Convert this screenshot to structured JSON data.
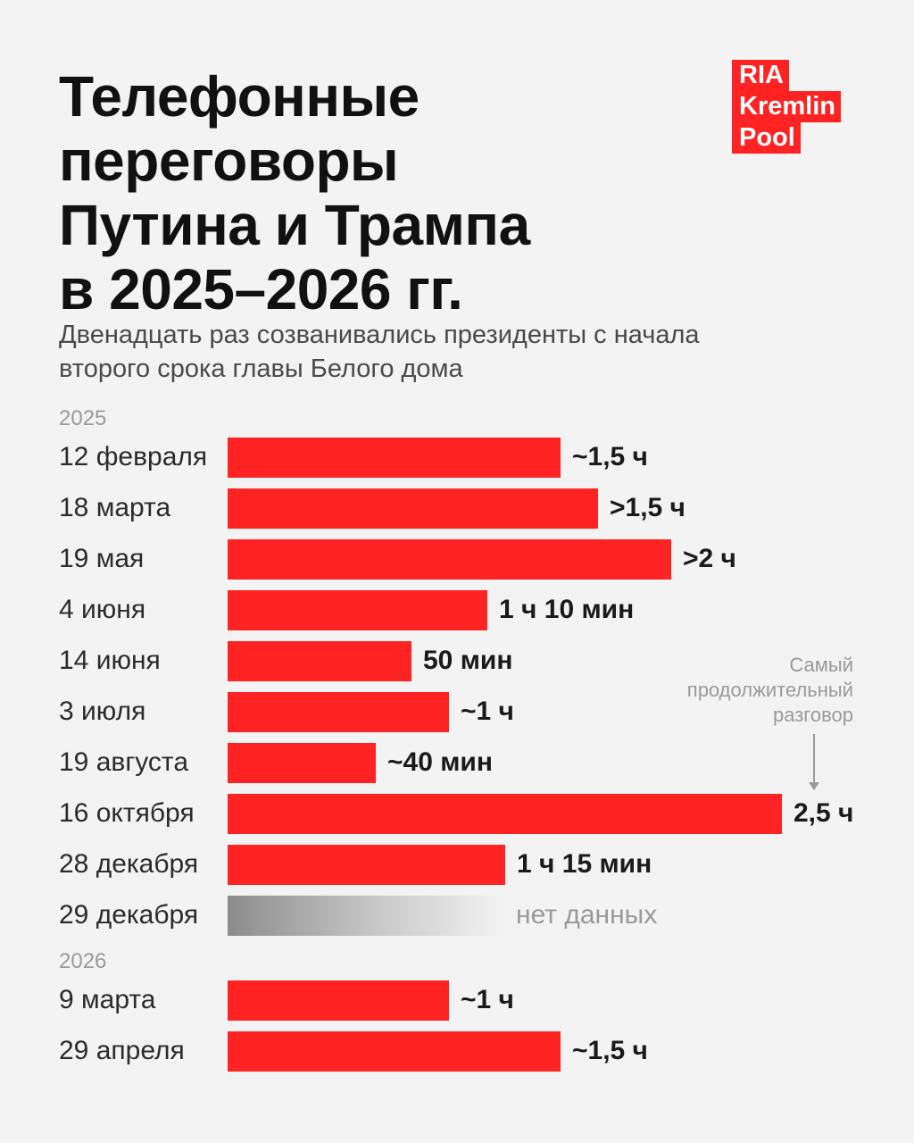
{
  "title_lines": [
    "Телефонные",
    "переговоры",
    "Путина и Трампа",
    "в 2025–2026 гг."
  ],
  "subtitle_lines": [
    "Двенадцать раз созванивались президенты с начала",
    "второго срока главы Белого дома"
  ],
  "logo_lines": [
    "RIA",
    "Kremlin",
    "Pool"
  ],
  "colors": {
    "bar": "#ff2323",
    "no_data": "#9a9a9a",
    "background": "#f3f3f3"
  },
  "annotation": {
    "lines": [
      "Самый",
      "продолжительный",
      "разговор"
    ],
    "target": "16 октября"
  },
  "chart_data": {
    "type": "bar",
    "orientation": "horizontal",
    "unit": "hours",
    "title": "Телефонные переговоры Путина и Трампа в 2025–2026 гг.",
    "xlim": [
      0,
      2.5
    ],
    "groups": [
      {
        "year": "2025",
        "rows": [
          {
            "date": "12 февраля",
            "value": 1.5,
            "label": "~1,5 ч"
          },
          {
            "date": "18 марта",
            "value": 1.67,
            "label": ">1,5 ч"
          },
          {
            "date": "19 мая",
            "value": 2.0,
            "label": ">2 ч"
          },
          {
            "date": "4 июня",
            "value": 1.17,
            "label": "1 ч 10 мин"
          },
          {
            "date": "14 июня",
            "value": 0.83,
            "label": "50 мин"
          },
          {
            "date": "3 июля",
            "value": 1.0,
            "label": "~1 ч"
          },
          {
            "date": "19 августа",
            "value": 0.67,
            "label": "~40 мин"
          },
          {
            "date": "16 октября",
            "value": 2.5,
            "label": "2,5 ч"
          },
          {
            "date": "28 декабря",
            "value": 1.25,
            "label": "1 ч 15 мин"
          },
          {
            "date": "29 декабря",
            "value": null,
            "label": "нет данных",
            "no_data": true
          }
        ]
      },
      {
        "year": "2026",
        "rows": [
          {
            "date": "9 марта",
            "value": 1.0,
            "label": "~1 ч"
          },
          {
            "date": "29 апреля",
            "value": 1.5,
            "label": "~1,5 ч"
          }
        ]
      }
    ]
  }
}
